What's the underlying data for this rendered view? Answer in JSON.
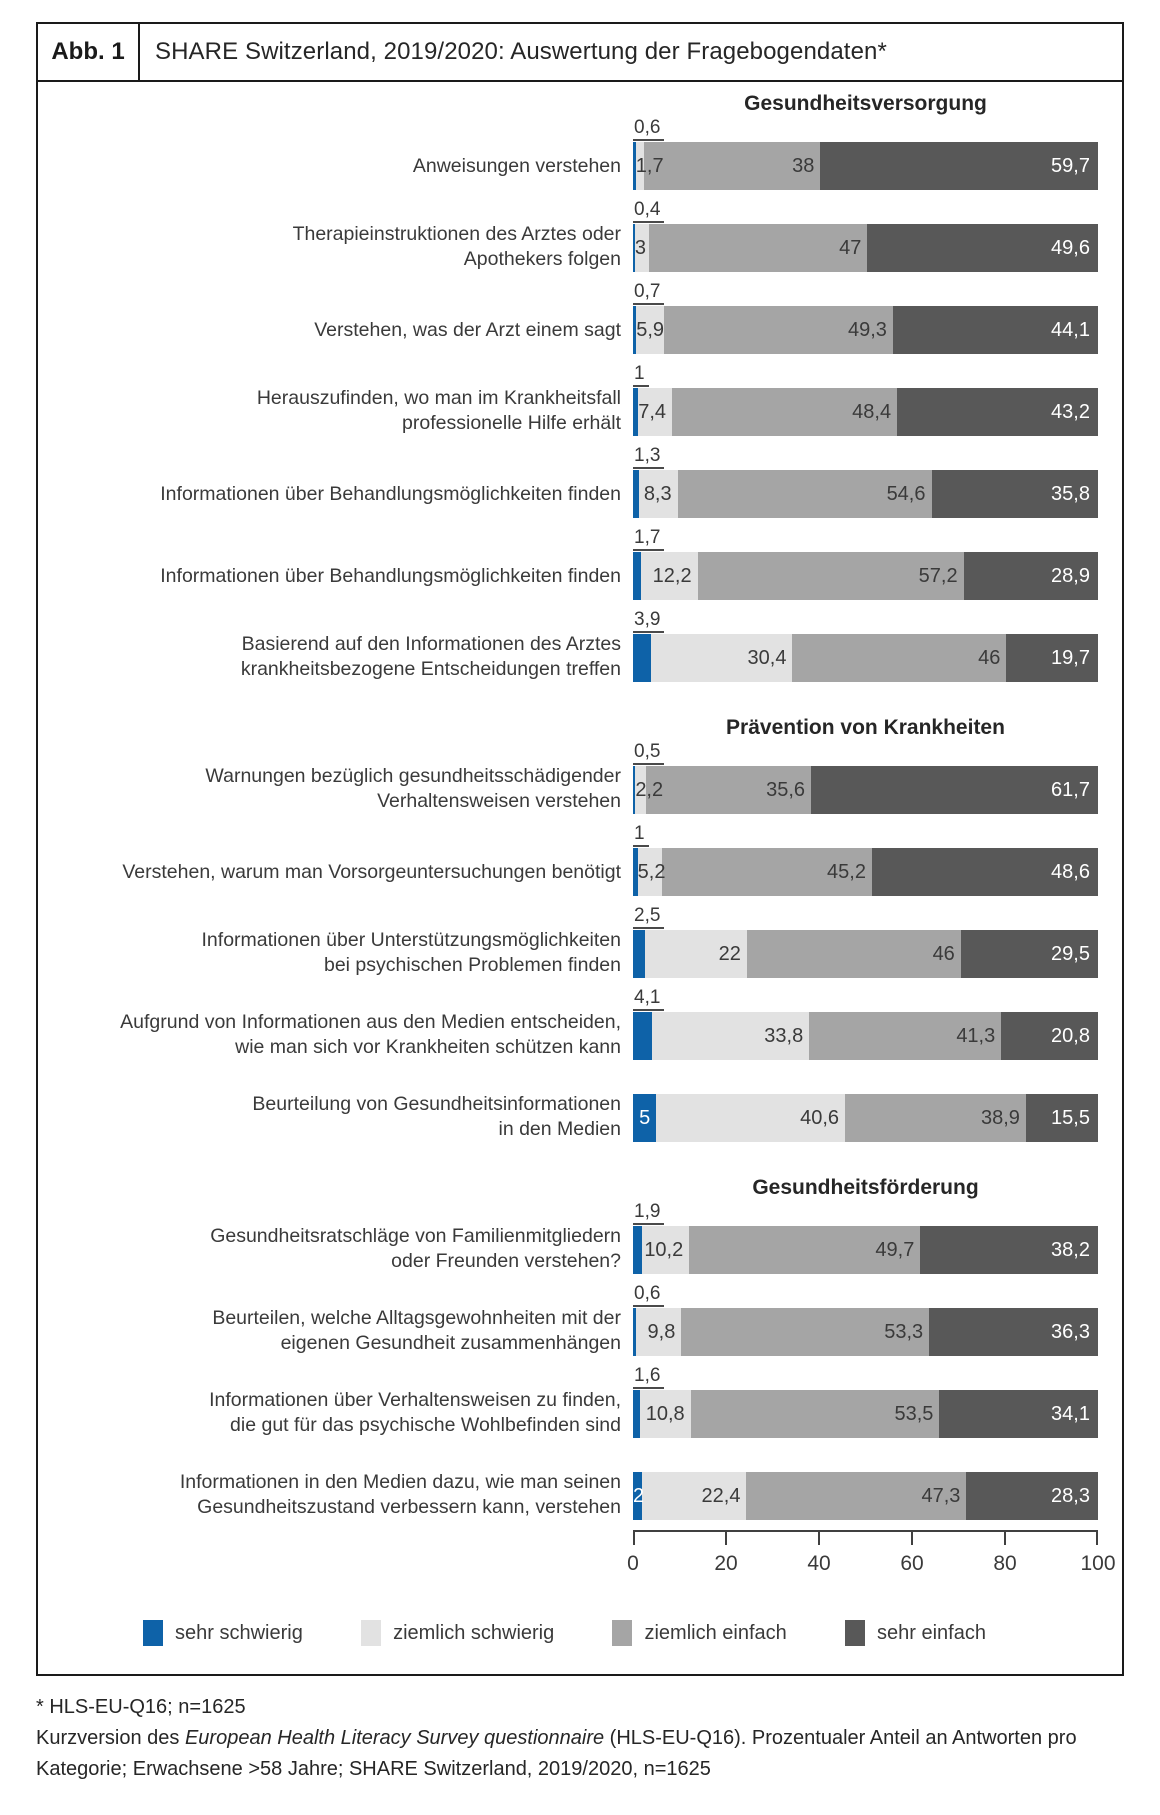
{
  "header": {
    "fig_label": "Abb. 1",
    "title": "SHARE Switzerland, 2019/2020: Auswertung der Fragebogendaten*"
  },
  "colors": {
    "sehr_schwierig": "#0E62A8",
    "ziemlich_schwierig": "#E2E2E2",
    "ziemlich_einfach": "#A5A5A5",
    "sehr_einfach": "#585858",
    "axis": "#404040",
    "frame": "#1a1a1a"
  },
  "legend": [
    {
      "label": "sehr schwierig",
      "color": "#0E62A8"
    },
    {
      "label": "ziemlich schwierig",
      "color": "#E2E2E2"
    },
    {
      "label": "ziemlich einfach",
      "color": "#A5A5A5"
    },
    {
      "label": "sehr einfach",
      "color": "#585858"
    }
  ],
  "axis": {
    "ticks": [
      0,
      20,
      40,
      60,
      80,
      100
    ],
    "tick_labels": [
      "0",
      "20",
      "40",
      "60",
      "80",
      "100"
    ]
  },
  "chart_data": {
    "type": "bar",
    "stacked": true,
    "orientation": "horizontal",
    "xlim": [
      0,
      100
    ],
    "unit": "percent",
    "series_names": [
      "sehr schwierig",
      "ziemlich schwierig",
      "ziemlich einfach",
      "sehr einfach"
    ],
    "sections": [
      {
        "title": "Gesundheitsversorgung",
        "rows": [
          {
            "label": "Anweisungen verstehen",
            "values": [
              0.6,
              1.7,
              38,
              59.7
            ],
            "value_labels": [
              "0,6",
              "1,7",
              "38",
              "59,7"
            ],
            "first_inside": false
          },
          {
            "label": "Therapieinstruktionen des Arztes oder\nApothekers folgen",
            "values": [
              0.4,
              3,
              47,
              49.6
            ],
            "value_labels": [
              "0,4",
              "3",
              "47",
              "49,6"
            ],
            "first_inside": false
          },
          {
            "label": "Verstehen, was der Arzt einem sagt",
            "values": [
              0.7,
              5.9,
              49.3,
              44.1
            ],
            "value_labels": [
              "0,7",
              "5,9",
              "49,3",
              "44,1"
            ],
            "first_inside": false
          },
          {
            "label": "Herauszufinden, wo man im Krankheitsfall\nprofessionelle Hilfe erhält",
            "values": [
              1,
              7.4,
              48.4,
              43.2
            ],
            "value_labels": [
              "1",
              "7,4",
              "48,4",
              "43,2"
            ],
            "first_inside": false
          },
          {
            "label": "Informationen über Behandlungsmöglichkeiten finden",
            "values": [
              1.3,
              8.3,
              54.6,
              35.8
            ],
            "value_labels": [
              "1,3",
              "8,3",
              "54,6",
              "35,8"
            ],
            "first_inside": false
          },
          {
            "label": "Informationen über Behandlungsmöglichkeiten finden",
            "values": [
              1.7,
              12.2,
              57.2,
              28.9
            ],
            "value_labels": [
              "1,7",
              "12,2",
              "57,2",
              "28,9"
            ],
            "first_inside": false
          },
          {
            "label": "Basierend auf den Informationen des Arztes\nkrankheitsbezogene Entscheidungen treffen",
            "values": [
              3.9,
              30.4,
              46,
              19.7
            ],
            "value_labels": [
              "3,9",
              "30,4",
              "46",
              "19,7"
            ],
            "first_inside": false
          }
        ]
      },
      {
        "title": "Prävention von Krankheiten",
        "rows": [
          {
            "label": "Warnungen bezüglich gesundheitsschädigender\nVerhaltensweisen verstehen",
            "values": [
              0.5,
              2.2,
              35.6,
              61.7
            ],
            "value_labels": [
              "0,5",
              "2,2",
              "35,6",
              "61,7"
            ],
            "first_inside": false
          },
          {
            "label": "Verstehen, warum man Vorsorgeuntersuchungen benötigt",
            "values": [
              1,
              5.2,
              45.2,
              48.6
            ],
            "value_labels": [
              "1",
              "5,2",
              "45,2",
              "48,6"
            ],
            "first_inside": false
          },
          {
            "label": "Informationen über Unterstützungsmöglichkeiten\nbei psychischen  Problemen finden",
            "values": [
              2.5,
              22,
              46,
              29.5
            ],
            "value_labels": [
              "2,5",
              "22",
              "46",
              "29,5"
            ],
            "first_inside": false
          },
          {
            "label": "Aufgrund von Informationen aus den Medien entscheiden,\nwie man sich vor Krankheiten schützen kann",
            "values": [
              4.1,
              33.8,
              41.3,
              20.8
            ],
            "value_labels": [
              "4,1",
              "33,8",
              "41,3",
              "20,8"
            ],
            "first_inside": false
          },
          {
            "label": "Beurteilung von Gesundheitsinformationen\nin den Medien",
            "values": [
              5,
              40.6,
              38.9,
              15.5
            ],
            "value_labels": [
              "5",
              "40,6",
              "38,9",
              "15,5"
            ],
            "first_inside": true
          }
        ]
      },
      {
        "title": "Gesundheitsförderung",
        "rows": [
          {
            "label": "Gesundheitsratschläge von Familienmitgliedern\noder Freunden verstehen?",
            "values": [
              1.9,
              10.2,
              49.7,
              38.2
            ],
            "value_labels": [
              "1,9",
              "10,2",
              "49,7",
              "38,2"
            ],
            "first_inside": false
          },
          {
            "label": "Beurteilen, welche Alltagsgewohnheiten mit der\neigenen Gesundheit zusammenhängen",
            "values": [
              0.6,
              9.8,
              53.3,
              36.3
            ],
            "value_labels": [
              "0,6",
              "9,8",
              "53,3",
              "36,3"
            ],
            "first_inside": false
          },
          {
            "label": "Informationen über Verhaltensweisen zu finden,\ndie gut für das psychische Wohlbefinden sind",
            "values": [
              1.6,
              10.8,
              53.5,
              34.1
            ],
            "value_labels": [
              "1,6",
              "10,8",
              "53,5",
              "34,1"
            ],
            "first_inside": false
          },
          {
            "label": "Informationen in den Medien dazu, wie man seinen\nGesundheitszustand verbessern kann, verstehen",
            "values": [
              2,
              22.4,
              47.3,
              28.3
            ],
            "value_labels": [
              "2",
              "22,4",
              "47,3",
              "28,3"
            ],
            "first_inside": true
          }
        ]
      }
    ]
  },
  "footnote": {
    "line1": "* HLS-EU-Q16; n=1625",
    "line2_pre": "Kurzversion des ",
    "line2_italic": "European Health Literacy Survey questionnaire",
    "line2_post": " (HLS-EU-Q16). Prozentualer Anteil an Antworten pro Kategorie; Erwachsene >58 Jahre; SHARE Switzerland, 2019/2020, n=1625"
  }
}
